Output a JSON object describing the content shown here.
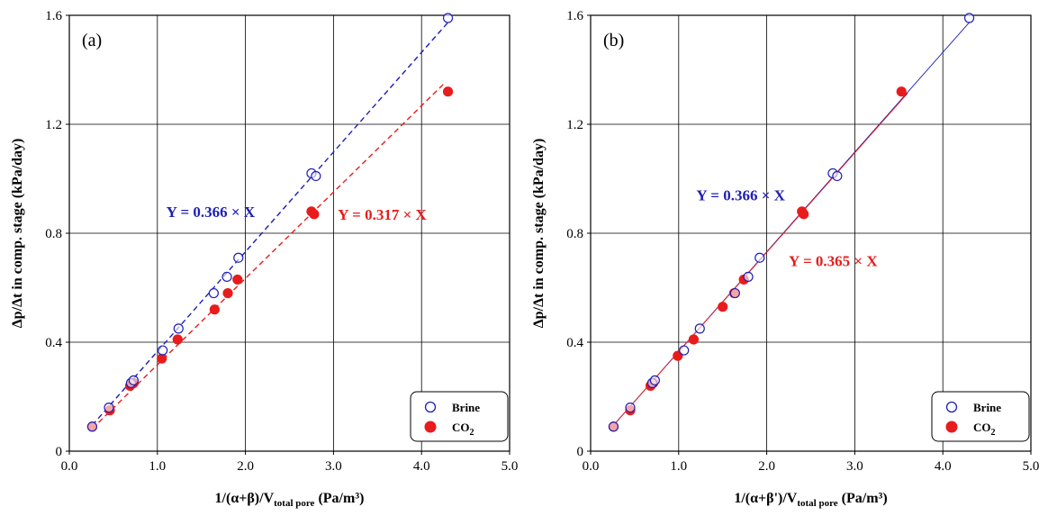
{
  "colors": {
    "brine": "#1f1fb4",
    "co2": "#e81c1c",
    "grid": "#000000"
  },
  "chart_data": [
    {
      "type": "scatter",
      "panel_label": "(a)",
      "xlabel_main": "1/(α+β)/V",
      "xlabel_sub": "total pore",
      "xlabel_unit": " (Pa/m³)",
      "ylabel": "Δp/Δt in comp. stage (kPa/day)",
      "xlim": [
        0,
        5.0
      ],
      "ylim": [
        0,
        1.6
      ],
      "xticks": [
        "0.0",
        "1.0",
        "2.0",
        "3.0",
        "4.0",
        "5.0"
      ],
      "yticks": [
        "0",
        "0.4",
        "0.8",
        "1.2",
        "1.6"
      ],
      "series": [
        {
          "name": "Brine",
          "marker": "open-circle",
          "color_key": "brine",
          "x": [
            0.26,
            0.45,
            0.7,
            0.73,
            1.06,
            1.24,
            1.64,
            1.79,
            1.92,
            2.75,
            2.8,
            4.3
          ],
          "y": [
            0.09,
            0.16,
            0.25,
            0.26,
            0.37,
            0.45,
            0.58,
            0.64,
            0.71,
            1.02,
            1.01,
            1.59
          ]
        },
        {
          "name": "CO₂",
          "marker": "filled-circle",
          "color_key": "co2",
          "x": [
            0.26,
            0.46,
            0.69,
            0.73,
            1.05,
            1.23,
            1.65,
            1.8,
            1.91,
            2.75,
            2.78,
            4.3
          ],
          "y": [
            0.09,
            0.15,
            0.24,
            0.25,
            0.34,
            0.41,
            0.52,
            0.58,
            0.63,
            0.88,
            0.87,
            1.32
          ]
        }
      ],
      "fits": [
        {
          "label_prefix": "Y = ",
          "slope_text": "0.366",
          "label_suffix": " × X",
          "slope": 0.366,
          "x_range": [
            0.26,
            4.3
          ],
          "style": "dashed",
          "color_key": "brine",
          "label_anchor_data": [
            1.1,
            0.88
          ]
        },
        {
          "label_prefix": "Y = ",
          "slope_text": "0.317",
          "label_suffix": " × X",
          "slope": 0.317,
          "x_range": [
            0.26,
            4.25
          ],
          "style": "dashed",
          "color_key": "co2",
          "label_anchor_data": [
            3.05,
            0.87
          ]
        }
      ],
      "legend": {
        "placement": "bottom-right",
        "entries": [
          "Brine",
          "CO",
          "2"
        ]
      }
    },
    {
      "type": "scatter",
      "panel_label": "(b)",
      "xlabel_main": "1/(α+β')/V",
      "xlabel_sub": "total pore",
      "xlabel_unit": " (Pa/m³)",
      "ylabel": "Δp/Δt in comp. stage (kPa/day)",
      "xlim": [
        0,
        5.0
      ],
      "ylim": [
        0,
        1.6
      ],
      "xticks": [
        "0.0",
        "1.0",
        "2.0",
        "3.0",
        "4.0",
        "5.0"
      ],
      "yticks": [
        "0",
        "0.4",
        "0.8",
        "1.2",
        "1.6"
      ],
      "series": [
        {
          "name": "Brine",
          "marker": "open-circle",
          "color_key": "brine",
          "x": [
            0.26,
            0.45,
            0.7,
            0.73,
            1.06,
            1.24,
            1.64,
            1.79,
            1.92,
            2.75,
            2.8,
            4.3
          ],
          "y": [
            0.09,
            0.16,
            0.25,
            0.26,
            0.37,
            0.45,
            0.58,
            0.64,
            0.71,
            1.02,
            1.01,
            1.59
          ]
        },
        {
          "name": "CO₂",
          "marker": "filled-circle",
          "color_key": "co2",
          "x": [
            0.26,
            0.45,
            0.68,
            0.71,
            0.99,
            1.17,
            1.5,
            1.63,
            1.74,
            2.4,
            2.42,
            3.53
          ],
          "y": [
            0.09,
            0.15,
            0.24,
            0.25,
            0.35,
            0.41,
            0.53,
            0.58,
            0.63,
            0.88,
            0.87,
            1.32
          ]
        }
      ],
      "fits": [
        {
          "label_prefix": "Y = ",
          "slope_text": "0.366",
          "label_suffix": " × X",
          "slope": 0.366,
          "x_range": [
            0.26,
            4.3
          ],
          "style": "solid",
          "color_key": "brine",
          "label_anchor_data": [
            1.2,
            0.94
          ]
        },
        {
          "label_prefix": "Y = ",
          "slope_text": "0.365",
          "label_suffix": " × X",
          "slope": 0.365,
          "x_range": [
            0.26,
            3.6
          ],
          "style": "solid",
          "color_key": "co2",
          "label_anchor_data": [
            2.25,
            0.7
          ]
        }
      ],
      "legend": {
        "placement": "bottom-right",
        "entries": [
          "Brine",
          "CO",
          "2"
        ]
      }
    }
  ]
}
